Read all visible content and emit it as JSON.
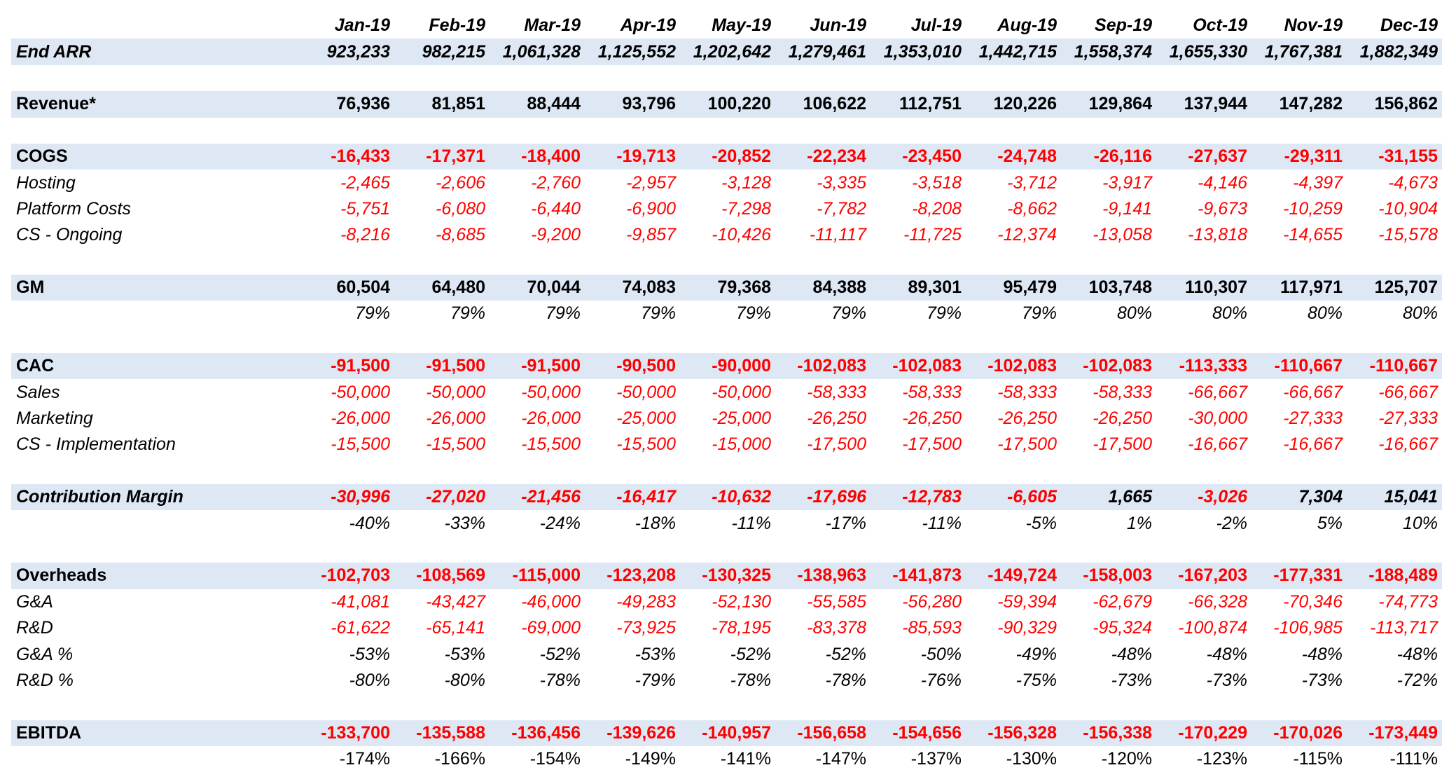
{
  "months": [
    "Jan-19",
    "Feb-19",
    "Mar-19",
    "Apr-19",
    "May-19",
    "Jun-19",
    "Jul-19",
    "Aug-19",
    "Sep-19",
    "Oct-19",
    "Nov-19",
    "Dec-19"
  ],
  "rows": [
    {
      "type": "header"
    },
    {
      "type": "data",
      "label": "End ARR",
      "style": "bolditalic",
      "band": true,
      "values": [
        "923,233",
        "982,215",
        "1,061,328",
        "1,125,552",
        "1,202,642",
        "1,279,461",
        "1,353,010",
        "1,442,715",
        "1,558,374",
        "1,655,330",
        "1,767,381",
        "1,882,349"
      ]
    },
    {
      "type": "blank"
    },
    {
      "type": "data",
      "label": "Revenue*",
      "style": "bold",
      "band": true,
      "values": [
        "76,936",
        "81,851",
        "88,444",
        "93,796",
        "100,220",
        "106,622",
        "112,751",
        "120,226",
        "129,864",
        "137,944",
        "147,282",
        "156,862"
      ]
    },
    {
      "type": "blank"
    },
    {
      "type": "data",
      "label": "COGS",
      "style": "bold",
      "band": true,
      "values": [
        "-16,433",
        "-17,371",
        "-18,400",
        "-19,713",
        "-20,852",
        "-22,234",
        "-23,450",
        "-24,748",
        "-26,116",
        "-27,637",
        "-29,311",
        "-31,155"
      ]
    },
    {
      "type": "data",
      "label": "Hosting",
      "style": "italic",
      "values": [
        "-2,465",
        "-2,606",
        "-2,760",
        "-2,957",
        "-3,128",
        "-3,335",
        "-3,518",
        "-3,712",
        "-3,917",
        "-4,146",
        "-4,397",
        "-4,673"
      ]
    },
    {
      "type": "data",
      "label": "Platform Costs",
      "style": "italic",
      "values": [
        "-5,751",
        "-6,080",
        "-6,440",
        "-6,900",
        "-7,298",
        "-7,782",
        "-8,208",
        "-8,662",
        "-9,141",
        "-9,673",
        "-10,259",
        "-10,904"
      ]
    },
    {
      "type": "data",
      "label": "CS - Ongoing",
      "style": "italic",
      "values": [
        "-8,216",
        "-8,685",
        "-9,200",
        "-9,857",
        "-10,426",
        "-11,117",
        "-11,725",
        "-12,374",
        "-13,058",
        "-13,818",
        "-14,655",
        "-15,578"
      ]
    },
    {
      "type": "blank"
    },
    {
      "type": "data",
      "label": "GM",
      "style": "bold",
      "band": true,
      "values": [
        "60,504",
        "64,480",
        "70,044",
        "74,083",
        "79,368",
        "84,388",
        "89,301",
        "95,479",
        "103,748",
        "110,307",
        "117,971",
        "125,707"
      ]
    },
    {
      "type": "pct",
      "label": "",
      "values": [
        "79%",
        "79%",
        "79%",
        "79%",
        "79%",
        "79%",
        "79%",
        "79%",
        "80%",
        "80%",
        "80%",
        "80%"
      ]
    },
    {
      "type": "blank"
    },
    {
      "type": "data",
      "label": "CAC",
      "style": "bold",
      "band": true,
      "values": [
        "-91,500",
        "-91,500",
        "-91,500",
        "-90,500",
        "-90,000",
        "-102,083",
        "-102,083",
        "-102,083",
        "-102,083",
        "-113,333",
        "-110,667",
        "-110,667"
      ]
    },
    {
      "type": "data",
      "label": "Sales",
      "style": "italic",
      "values": [
        "-50,000",
        "-50,000",
        "-50,000",
        "-50,000",
        "-50,000",
        "-58,333",
        "-58,333",
        "-58,333",
        "-58,333",
        "-66,667",
        "-66,667",
        "-66,667"
      ]
    },
    {
      "type": "data",
      "label": "Marketing",
      "style": "italic",
      "values": [
        "-26,000",
        "-26,000",
        "-26,000",
        "-25,000",
        "-25,000",
        "-26,250",
        "-26,250",
        "-26,250",
        "-26,250",
        "-30,000",
        "-27,333",
        "-27,333"
      ]
    },
    {
      "type": "data",
      "label": "CS - Implementation",
      "style": "italic",
      "values": [
        "-15,500",
        "-15,500",
        "-15,500",
        "-15,500",
        "-15,000",
        "-17,500",
        "-17,500",
        "-17,500",
        "-17,500",
        "-16,667",
        "-16,667",
        "-16,667"
      ]
    },
    {
      "type": "blank"
    },
    {
      "type": "data",
      "label": "Contribution Margin",
      "style": "bolditalic",
      "band": true,
      "values": [
        "-30,996",
        "-27,020",
        "-21,456",
        "-16,417",
        "-10,632",
        "-17,696",
        "-12,783",
        "-6,605",
        "1,665",
        "-3,026",
        "7,304",
        "15,041"
      ]
    },
    {
      "type": "pct",
      "label": "",
      "values": [
        "-40%",
        "-33%",
        "-24%",
        "-18%",
        "-11%",
        "-17%",
        "-11%",
        "-5%",
        "1%",
        "-2%",
        "5%",
        "10%"
      ]
    },
    {
      "type": "blank"
    },
    {
      "type": "data",
      "label": "Overheads",
      "style": "bold",
      "band": true,
      "values": [
        "-102,703",
        "-108,569",
        "-115,000",
        "-123,208",
        "-130,325",
        "-138,963",
        "-141,873",
        "-149,724",
        "-158,003",
        "-167,203",
        "-177,331",
        "-188,489"
      ]
    },
    {
      "type": "data",
      "label": "G&A",
      "style": "italic",
      "values": [
        "-41,081",
        "-43,427",
        "-46,000",
        "-49,283",
        "-52,130",
        "-55,585",
        "-56,280",
        "-59,394",
        "-62,679",
        "-66,328",
        "-70,346",
        "-74,773"
      ]
    },
    {
      "type": "data",
      "label": "R&D",
      "style": "italic",
      "values": [
        "-61,622",
        "-65,141",
        "-69,000",
        "-73,925",
        "-78,195",
        "-83,378",
        "-85,593",
        "-90,329",
        "-95,324",
        "-100,874",
        "-106,985",
        "-113,717"
      ]
    },
    {
      "type": "pct",
      "label": "G&A %",
      "style": "italic",
      "values": [
        "-53%",
        "-53%",
        "-52%",
        "-53%",
        "-52%",
        "-52%",
        "-50%",
        "-49%",
        "-48%",
        "-48%",
        "-48%",
        "-48%"
      ]
    },
    {
      "type": "pct",
      "label": "R&D %",
      "style": "italic",
      "values": [
        "-80%",
        "-80%",
        "-78%",
        "-79%",
        "-78%",
        "-78%",
        "-76%",
        "-75%",
        "-73%",
        "-73%",
        "-73%",
        "-72%"
      ]
    },
    {
      "type": "blank"
    },
    {
      "type": "data",
      "label": "EBITDA",
      "style": "bold",
      "band": true,
      "values": [
        "-133,700",
        "-135,588",
        "-136,456",
        "-139,626",
        "-140,957",
        "-156,658",
        "-154,656",
        "-156,328",
        "-156,338",
        "-170,229",
        "-170,026",
        "-173,449"
      ]
    },
    {
      "type": "pct",
      "label": "",
      "plain": true,
      "values": [
        "-174%",
        "-166%",
        "-154%",
        "-149%",
        "-141%",
        "-147%",
        "-137%",
        "-130%",
        "-120%",
        "-123%",
        "-115%",
        "-111%"
      ]
    }
  ],
  "colors": {
    "band": "#dde8f4",
    "negative": "#ff0000",
    "text": "#000000"
  }
}
